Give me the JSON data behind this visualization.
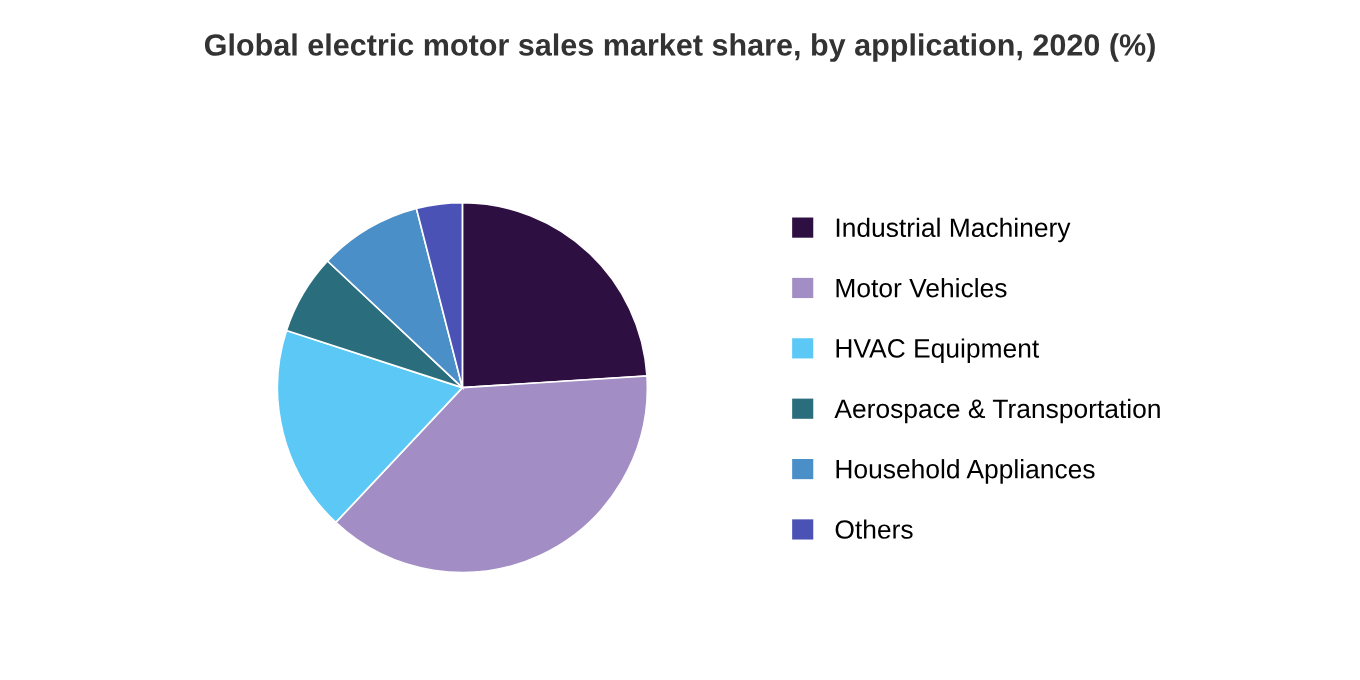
{
  "chart_data": {
    "type": "pie",
    "title": "Global electric motor sales market share, by application, 2020 (%)",
    "categories": [
      "Industrial Machinery",
      "Motor Vehicles",
      "HVAC Equipment",
      "Aerospace & Transportation",
      "Household Appliances",
      "Others"
    ],
    "values": [
      24,
      38,
      18,
      7,
      9,
      4
    ],
    "colors": [
      "#2e0f42",
      "#a28dc4",
      "#5bc8f5",
      "#2a6e7e",
      "#4a8fc8",
      "#4b52b5"
    ],
    "legend": "right"
  }
}
